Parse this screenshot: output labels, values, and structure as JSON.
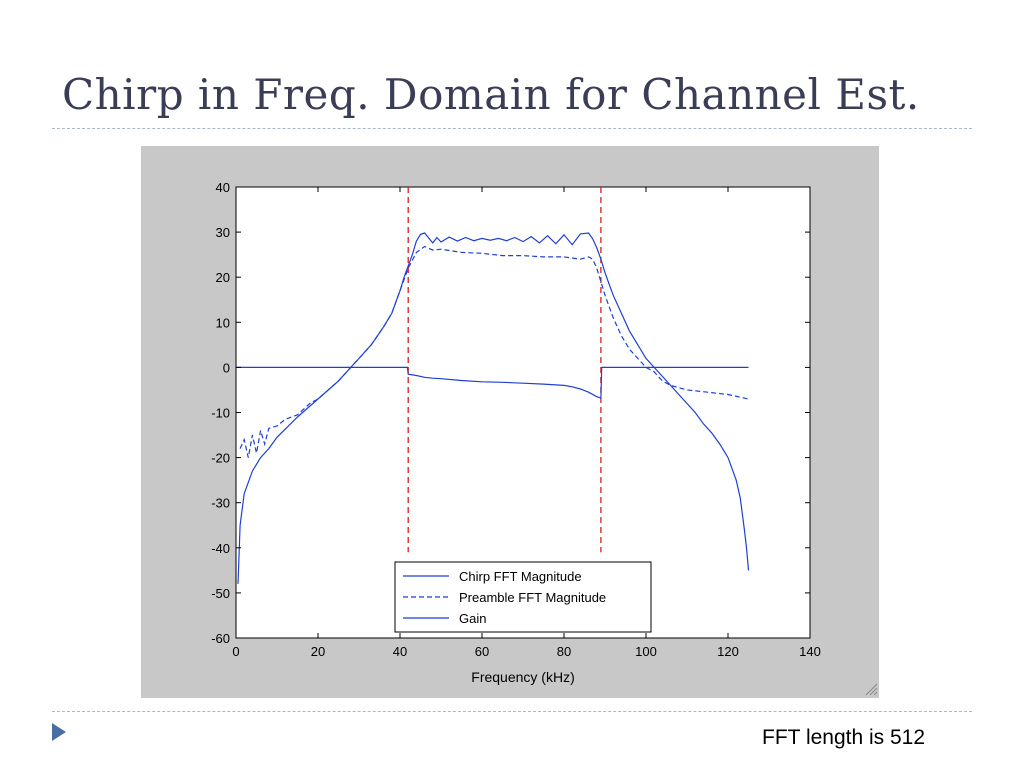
{
  "slide": {
    "title": "Chirp in Freq. Domain for Channel Est.",
    "footnote": "FFT length is 512"
  },
  "colors": {
    "title": "#3b3d56",
    "series": "#1f3fd6",
    "marker_lines": "#e01a1a",
    "figure_background": "#c8c8c8",
    "bullet": "#4a6fa5"
  },
  "chart_data": {
    "type": "line",
    "title": "",
    "xlabel": "Frequency (kHz)",
    "ylabel": "",
    "xlim": [
      0,
      140
    ],
    "ylim": [
      -60,
      40
    ],
    "xticks": [
      0,
      20,
      40,
      60,
      80,
      100,
      120,
      140
    ],
    "yticks": [
      40,
      30,
      20,
      10,
      0,
      -10,
      -20,
      -30,
      -40,
      -50,
      -60
    ],
    "grid": false,
    "legend_position": "bottom-center",
    "vertical_markers": [
      {
        "x": 42,
        "y_range": [
          -41,
          40
        ],
        "style": "dashed",
        "color": "red"
      },
      {
        "x": 89,
        "y_range": [
          -41,
          40
        ],
        "style": "dashed",
        "color": "red"
      }
    ],
    "series": [
      {
        "name": "Chirp FFT Magnitude",
        "style": "solid",
        "points": [
          [
            0.5,
            -48
          ],
          [
            1,
            -35
          ],
          [
            2,
            -28
          ],
          [
            4,
            -23
          ],
          [
            6,
            -20
          ],
          [
            8,
            -18
          ],
          [
            10,
            -15.5
          ],
          [
            15,
            -11
          ],
          [
            20,
            -7
          ],
          [
            25,
            -3
          ],
          [
            28,
            0
          ],
          [
            30,
            2
          ],
          [
            33,
            5
          ],
          [
            36,
            9
          ],
          [
            38,
            12
          ],
          [
            40,
            17
          ],
          [
            41,
            20
          ],
          [
            42,
            22.5
          ],
          [
            43,
            25
          ],
          [
            44,
            28
          ],
          [
            45,
            29.5
          ],
          [
            46,
            29.8
          ],
          [
            47,
            28.7
          ],
          [
            48,
            27.6
          ],
          [
            49,
            28.8
          ],
          [
            50,
            27.8
          ],
          [
            52,
            28.9
          ],
          [
            54,
            28
          ],
          [
            56,
            28.8
          ],
          [
            58,
            28.1
          ],
          [
            60,
            28.6
          ],
          [
            62,
            28.2
          ],
          [
            64,
            28.6
          ],
          [
            66,
            28.1
          ],
          [
            68,
            28.8
          ],
          [
            70,
            27.9
          ],
          [
            72,
            29
          ],
          [
            74,
            27.6
          ],
          [
            76,
            29.2
          ],
          [
            78,
            27.4
          ],
          [
            80,
            29.4
          ],
          [
            82,
            27.2
          ],
          [
            84,
            29.6
          ],
          [
            86,
            29.8
          ],
          [
            87,
            28.5
          ],
          [
            88,
            26.5
          ],
          [
            89,
            24
          ],
          [
            90,
            21
          ],
          [
            91,
            18.5
          ],
          [
            92,
            16
          ],
          [
            94,
            12
          ],
          [
            96,
            8
          ],
          [
            98,
            5
          ],
          [
            100,
            2
          ],
          [
            102,
            0
          ],
          [
            104,
            -2
          ],
          [
            106,
            -4
          ],
          [
            108,
            -6
          ],
          [
            110,
            -8
          ],
          [
            112,
            -10
          ],
          [
            114,
            -12.5
          ],
          [
            116,
            -14.5
          ],
          [
            118,
            -17
          ],
          [
            120,
            -20
          ],
          [
            122,
            -25
          ],
          [
            123,
            -29
          ],
          [
            124,
            -36
          ],
          [
            124.5,
            -40
          ],
          [
            125,
            -45
          ]
        ]
      },
      {
        "name": "Preamble FFT Magnitude",
        "style": "dashed",
        "points": [
          [
            1,
            -18
          ],
          [
            2,
            -16
          ],
          [
            3,
            -20
          ],
          [
            4,
            -15
          ],
          [
            5,
            -19
          ],
          [
            6,
            -14
          ],
          [
            7,
            -17
          ],
          [
            8,
            -13.5
          ],
          [
            10,
            -13
          ],
          [
            12,
            -11.5
          ],
          [
            15,
            -10.5
          ],
          [
            18,
            -8
          ],
          [
            20,
            -7
          ],
          [
            25,
            -3
          ],
          [
            28,
            0
          ],
          [
            30,
            2
          ],
          [
            33,
            5
          ],
          [
            36,
            9
          ],
          [
            38,
            12
          ],
          [
            40,
            17
          ],
          [
            42,
            22
          ],
          [
            44,
            25.5
          ],
          [
            46,
            26.8
          ],
          [
            48,
            26
          ],
          [
            50,
            26.2
          ],
          [
            55,
            25.5
          ],
          [
            60,
            25.3
          ],
          [
            65,
            24.8
          ],
          [
            70,
            24.8
          ],
          [
            75,
            24.5
          ],
          [
            80,
            24.5
          ],
          [
            84,
            24
          ],
          [
            86,
            24.5
          ],
          [
            87,
            24
          ],
          [
            88,
            22
          ],
          [
            89,
            19
          ],
          [
            90,
            16
          ],
          [
            92,
            11
          ],
          [
            94,
            7
          ],
          [
            96,
            4
          ],
          [
            98,
            2
          ],
          [
            100,
            0
          ],
          [
            102,
            -1
          ],
          [
            104,
            -3
          ],
          [
            106,
            -4
          ],
          [
            108,
            -4.5
          ],
          [
            110,
            -5
          ],
          [
            115,
            -5.5
          ],
          [
            120,
            -6
          ],
          [
            125,
            -7
          ]
        ]
      },
      {
        "name": "Gain",
        "style": "solid",
        "points": [
          [
            0,
            0
          ],
          [
            41.8,
            0
          ],
          [
            42,
            -1.5
          ],
          [
            44,
            -1.8
          ],
          [
            46,
            -2.2
          ],
          [
            48,
            -2.4
          ],
          [
            50,
            -2.5
          ],
          [
            55,
            -2.9
          ],
          [
            60,
            -3.2
          ],
          [
            65,
            -3.3
          ],
          [
            70,
            -3.5
          ],
          [
            75,
            -3.7
          ],
          [
            80,
            -4
          ],
          [
            82,
            -4.3
          ],
          [
            84,
            -4.8
          ],
          [
            86,
            -5.5
          ],
          [
            88,
            -6.5
          ],
          [
            89,
            -6.8
          ],
          [
            89.2,
            0
          ],
          [
            125,
            0
          ]
        ]
      }
    ]
  }
}
